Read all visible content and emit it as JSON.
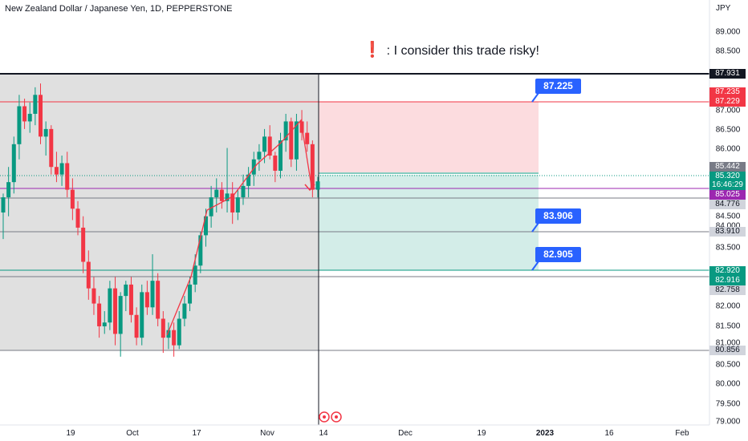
{
  "header": {
    "title": "New Zealand Dollar / Japanese Yen, 1D, PEPPERSTONE",
    "currency": "JPY"
  },
  "note": {
    "icon": "exclamation-icon",
    "text": ": I consider this trade risky!"
  },
  "price_axis": {
    "ticks": [
      "89.000",
      "88.500",
      "87.000",
      "86.500",
      "86.000",
      "84.500",
      "84.000",
      "83.500",
      "82.000",
      "81.500",
      "81.000",
      "80.500",
      "80.000",
      "79.500",
      "79.000"
    ]
  },
  "price_tags": {
    "top_level": "87.931",
    "tp_upper": "87.235",
    "tp_lower": "87.229",
    "candle_high": "85.442",
    "current_price": "85.320",
    "countdown": "16:46:29",
    "purple_level": "85.025",
    "level_84": "84.776",
    "level_83": "83.910",
    "stop_upper": "82.920",
    "stop_lower": "82.916",
    "level_82": "82.758",
    "bottom_level": "80.856"
  },
  "time_axis": {
    "labels": [
      "19",
      "Oct",
      "17",
      "Nov",
      "14",
      "Dec",
      "19",
      "2023",
      "16",
      "Feb"
    ]
  },
  "callouts": {
    "upper": "87.225",
    "middle": "83.906",
    "lower": "82.905"
  },
  "colors": {
    "bull": "#089981",
    "bear": "#f23645",
    "accent": "#2962ff",
    "risk_fill": "#fcdcdf",
    "reward_fill": "#d3ede8",
    "gray_region": "#e0e0e0"
  },
  "chart_data": {
    "type": "candlestick",
    "y_range": [
      78.9,
      90.1
    ],
    "candles": [
      {
        "o": 84.5,
        "h": 85.0,
        "l": 83.8,
        "c": 84.9
      },
      {
        "o": 84.9,
        "h": 85.7,
        "l": 84.4,
        "c": 85.3
      },
      {
        "o": 85.3,
        "h": 86.5,
        "l": 85.0,
        "c": 86.3
      },
      {
        "o": 86.3,
        "h": 87.6,
        "l": 85.9,
        "c": 87.3
      },
      {
        "o": 87.3,
        "h": 87.5,
        "l": 86.7,
        "c": 86.9
      },
      {
        "o": 86.9,
        "h": 87.4,
        "l": 86.6,
        "c": 87.1
      },
      {
        "o": 87.1,
        "h": 87.8,
        "l": 86.8,
        "c": 87.6
      },
      {
        "o": 87.6,
        "h": 87.9,
        "l": 86.3,
        "c": 86.5
      },
      {
        "o": 86.5,
        "h": 86.9,
        "l": 86.0,
        "c": 86.7
      },
      {
        "o": 86.7,
        "h": 86.8,
        "l": 85.5,
        "c": 85.7
      },
      {
        "o": 85.7,
        "h": 86.1,
        "l": 85.3,
        "c": 85.5
      },
      {
        "o": 85.5,
        "h": 86.0,
        "l": 85.2,
        "c": 85.8
      },
      {
        "o": 85.8,
        "h": 86.1,
        "l": 84.9,
        "c": 85.1
      },
      {
        "o": 85.1,
        "h": 85.4,
        "l": 84.3,
        "c": 84.6
      },
      {
        "o": 84.6,
        "h": 84.8,
        "l": 83.9,
        "c": 84.1
      },
      {
        "o": 84.1,
        "h": 84.4,
        "l": 82.9,
        "c": 83.2
      },
      {
        "o": 83.2,
        "h": 83.5,
        "l": 82.2,
        "c": 82.5
      },
      {
        "o": 82.5,
        "h": 82.8,
        "l": 81.8,
        "c": 82.1
      },
      {
        "o": 82.1,
        "h": 82.3,
        "l": 81.2,
        "c": 81.5
      },
      {
        "o": 81.5,
        "h": 81.9,
        "l": 81.3,
        "c": 81.6
      },
      {
        "o": 81.6,
        "h": 82.7,
        "l": 81.4,
        "c": 82.5
      },
      {
        "o": 82.5,
        "h": 82.8,
        "l": 81.0,
        "c": 81.3
      },
      {
        "o": 81.3,
        "h": 82.4,
        "l": 80.7,
        "c": 82.3
      },
      {
        "o": 82.3,
        "h": 82.7,
        "l": 81.9,
        "c": 82.6
      },
      {
        "o": 82.6,
        "h": 82.8,
        "l": 81.6,
        "c": 81.8
      },
      {
        "o": 81.8,
        "h": 82.0,
        "l": 81.0,
        "c": 81.2
      },
      {
        "o": 81.2,
        "h": 82.6,
        "l": 81.0,
        "c": 82.4
      },
      {
        "o": 82.4,
        "h": 82.7,
        "l": 81.8,
        "c": 82.0
      },
      {
        "o": 82.0,
        "h": 83.4,
        "l": 81.8,
        "c": 82.7
      },
      {
        "o": 82.7,
        "h": 82.9,
        "l": 81.5,
        "c": 81.7
      },
      {
        "o": 81.7,
        "h": 81.9,
        "l": 80.8,
        "c": 81.2
      },
      {
        "o": 81.2,
        "h": 81.6,
        "l": 80.9,
        "c": 81.4
      },
      {
        "o": 81.4,
        "h": 81.6,
        "l": 80.7,
        "c": 81.0
      },
      {
        "o": 81.0,
        "h": 81.9,
        "l": 80.9,
        "c": 81.7
      },
      {
        "o": 81.7,
        "h": 82.3,
        "l": 81.5,
        "c": 82.1
      },
      {
        "o": 82.1,
        "h": 82.8,
        "l": 81.9,
        "c": 82.6
      },
      {
        "o": 82.6,
        "h": 83.4,
        "l": 82.4,
        "c": 83.1
      },
      {
        "o": 83.1,
        "h": 84.0,
        "l": 82.9,
        "c": 83.9
      },
      {
        "o": 83.9,
        "h": 84.6,
        "l": 83.6,
        "c": 84.4
      },
      {
        "o": 84.4,
        "h": 85.2,
        "l": 84.1,
        "c": 84.9
      },
      {
        "o": 84.9,
        "h": 85.4,
        "l": 84.5,
        "c": 85.1
      },
      {
        "o": 85.1,
        "h": 85.3,
        "l": 84.6,
        "c": 84.8
      },
      {
        "o": 84.8,
        "h": 86.2,
        "l": 84.5,
        "c": 85.0
      },
      {
        "o": 85.0,
        "h": 85.3,
        "l": 84.2,
        "c": 84.5
      },
      {
        "o": 84.5,
        "h": 85.1,
        "l": 84.3,
        "c": 84.9
      },
      {
        "o": 84.9,
        "h": 85.5,
        "l": 84.7,
        "c": 85.2
      },
      {
        "o": 85.2,
        "h": 85.7,
        "l": 84.9,
        "c": 85.5
      },
      {
        "o": 85.5,
        "h": 86.1,
        "l": 85.2,
        "c": 85.9
      },
      {
        "o": 85.9,
        "h": 86.3,
        "l": 85.6,
        "c": 86.1
      },
      {
        "o": 86.1,
        "h": 86.7,
        "l": 85.8,
        "c": 86.5
      },
      {
        "o": 86.5,
        "h": 86.8,
        "l": 85.9,
        "c": 86.0
      },
      {
        "o": 86.0,
        "h": 86.1,
        "l": 85.3,
        "c": 85.6
      },
      {
        "o": 85.6,
        "h": 86.6,
        "l": 85.4,
        "c": 86.4
      },
      {
        "o": 86.4,
        "h": 87.1,
        "l": 86.1,
        "c": 86.9
      },
      {
        "o": 86.9,
        "h": 87.0,
        "l": 85.7,
        "c": 85.9
      },
      {
        "o": 85.9,
        "h": 87.1,
        "l": 85.6,
        "c": 86.9
      },
      {
        "o": 86.9,
        "h": 87.2,
        "l": 86.4,
        "c": 86.6
      },
      {
        "o": 86.6,
        "h": 86.9,
        "l": 86.1,
        "c": 86.3
      },
      {
        "o": 86.3,
        "h": 86.4,
        "l": 84.9,
        "c": 85.1
      },
      {
        "o": 85.1,
        "h": 85.44,
        "l": 84.9,
        "c": 85.32
      }
    ]
  }
}
